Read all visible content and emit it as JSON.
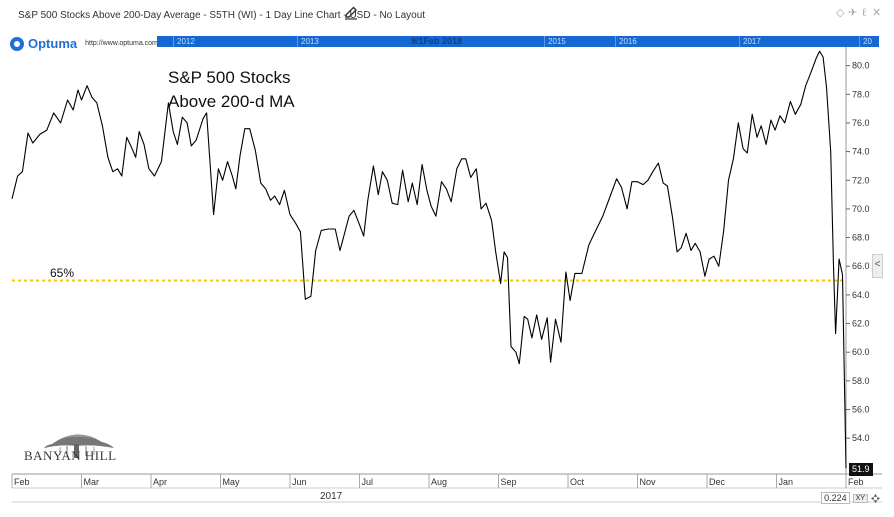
{
  "window": {
    "title": "S&P 500 Stocks Above 200-Day Average - S5TH (WI) - 1 Day Line Chart - USD - No Layout",
    "controls": [
      "◇",
      "✈",
      "ℓ",
      "✕"
    ]
  },
  "logo": {
    "name": "Optuma",
    "url": "http://www.optuma.com"
  },
  "timeline": {
    "years": [
      "2012",
      "2013",
      "2015",
      "2016",
      "2017",
      "20"
    ],
    "current": "9/1Feb 2018"
  },
  "annotation": {
    "line1": "S&P 500 Stocks",
    "line2": "Above 200-d MA"
  },
  "brand": "BANYAN HILL",
  "bottom": {
    "year_label": "2017",
    "truncated_year": "20",
    "zoom": "0.224",
    "xy_label": "XY"
  },
  "side_tab": "<",
  "colors": {
    "line": "#000000",
    "threshold": "#f5c400",
    "timeline_bg": "#1567d3",
    "badge_bg": "#111111"
  },
  "chart_data": {
    "type": "line",
    "xlabel": "",
    "ylabel": "",
    "ylim": [
      51.5,
      81.3
    ],
    "y_ticks": [
      "54.0",
      "56.0",
      "58.0",
      "60.0",
      "62.0",
      "64.0",
      "66.0",
      "68.0",
      "70.0",
      "72.0",
      "74.0",
      "76.0",
      "78.0",
      "80.0"
    ],
    "x_ticks": [
      "Feb",
      "Mar",
      "Apr",
      "May",
      "Jun",
      "Jul",
      "Aug",
      "Sep",
      "Oct",
      "Nov",
      "Dec",
      "Jan",
      "Feb"
    ],
    "last_value": "51.9",
    "threshold": {
      "value": 65,
      "label": "65%"
    },
    "series": [
      {
        "values": [
          [
            0,
            70.7
          ],
          [
            0.08,
            72.3
          ],
          [
            0.15,
            72.6
          ],
          [
            0.23,
            75.3
          ],
          [
            0.3,
            74.6
          ],
          [
            0.4,
            75.2
          ],
          [
            0.5,
            75.5
          ],
          [
            0.6,
            76.7
          ],
          [
            0.7,
            76.0
          ],
          [
            0.8,
            77.6
          ],
          [
            0.88,
            76.9
          ],
          [
            0.95,
            78.3
          ],
          [
            1.0,
            77.6
          ],
          [
            1.08,
            78.6
          ],
          [
            1.15,
            77.8
          ],
          [
            1.22,
            77.4
          ],
          [
            1.3,
            75.8
          ],
          [
            1.38,
            73.6
          ],
          [
            1.45,
            72.6
          ],
          [
            1.52,
            72.8
          ],
          [
            1.58,
            72.3
          ],
          [
            1.65,
            75.0
          ],
          [
            1.72,
            74.3
          ],
          [
            1.78,
            73.6
          ],
          [
            1.83,
            75.4
          ],
          [
            1.9,
            74.5
          ],
          [
            1.97,
            72.8
          ],
          [
            2.05,
            72.3
          ],
          [
            2.15,
            73.3
          ],
          [
            2.25,
            77.4
          ],
          [
            2.32,
            75.4
          ],
          [
            2.38,
            74.5
          ],
          [
            2.45,
            76.4
          ],
          [
            2.52,
            76.0
          ],
          [
            2.58,
            74.4
          ],
          [
            2.65,
            74.8
          ],
          [
            2.75,
            76.3
          ],
          [
            2.8,
            76.7
          ],
          [
            2.9,
            69.6
          ],
          [
            2.97,
            72.8
          ],
          [
            3.03,
            72.0
          ],
          [
            3.1,
            73.3
          ],
          [
            3.17,
            72.3
          ],
          [
            3.22,
            71.4
          ],
          [
            3.28,
            73.7
          ],
          [
            3.35,
            75.6
          ],
          [
            3.42,
            75.6
          ],
          [
            3.5,
            74.1
          ],
          [
            3.58,
            71.8
          ],
          [
            3.65,
            71.4
          ],
          [
            3.72,
            70.6
          ],
          [
            3.78,
            70.9
          ],
          [
            3.85,
            70.3
          ],
          [
            3.92,
            71.3
          ],
          [
            4.0,
            69.6
          ],
          [
            4.08,
            69.0
          ],
          [
            4.15,
            68.4
          ],
          [
            4.22,
            63.7
          ],
          [
            4.3,
            63.9
          ],
          [
            4.37,
            67.1
          ],
          [
            4.45,
            68.5
          ],
          [
            4.55,
            68.6
          ],
          [
            4.65,
            68.6
          ],
          [
            4.72,
            67.1
          ],
          [
            4.78,
            68.2
          ],
          [
            4.85,
            69.5
          ],
          [
            4.92,
            69.9
          ],
          [
            5.0,
            68.9
          ],
          [
            5.06,
            68.1
          ],
          [
            5.12,
            70.6
          ],
          [
            5.2,
            73.0
          ],
          [
            5.27,
            71.0
          ],
          [
            5.33,
            72.6
          ],
          [
            5.4,
            72.0
          ],
          [
            5.47,
            70.4
          ],
          [
            5.55,
            70.3
          ],
          [
            5.62,
            72.7
          ],
          [
            5.7,
            70.5
          ],
          [
            5.76,
            71.8
          ],
          [
            5.83,
            70.3
          ],
          [
            5.9,
            73.1
          ],
          [
            5.97,
            71.3
          ],
          [
            6.03,
            70.2
          ],
          [
            6.1,
            69.5
          ],
          [
            6.18,
            71.9
          ],
          [
            6.25,
            71.4
          ],
          [
            6.32,
            70.5
          ],
          [
            6.4,
            72.8
          ],
          [
            6.47,
            73.5
          ],
          [
            6.53,
            73.5
          ],
          [
            6.6,
            72.2
          ],
          [
            6.68,
            72.8
          ],
          [
            6.75,
            70.0
          ],
          [
            6.82,
            70.4
          ],
          [
            6.9,
            69.2
          ],
          [
            6.96,
            67.0
          ],
          [
            7.03,
            64.8
          ],
          [
            7.08,
            67.0
          ],
          [
            7.13,
            66.6
          ],
          [
            7.18,
            60.4
          ],
          [
            7.25,
            60.0
          ],
          [
            7.3,
            59.2
          ],
          [
            7.37,
            62.5
          ],
          [
            7.42,
            62.3
          ],
          [
            7.48,
            61.0
          ],
          [
            7.55,
            62.6
          ],
          [
            7.62,
            60.9
          ],
          [
            7.7,
            62.4
          ],
          [
            7.75,
            59.3
          ],
          [
            7.82,
            62.3
          ],
          [
            7.9,
            60.7
          ],
          [
            7.97,
            65.6
          ],
          [
            8.03,
            63.6
          ],
          [
            8.1,
            65.5
          ],
          [
            8.2,
            65.5
          ],
          [
            8.3,
            67.5
          ],
          [
            8.4,
            68.5
          ],
          [
            8.5,
            69.5
          ],
          [
            8.6,
            70.8
          ],
          [
            8.7,
            72.1
          ],
          [
            8.77,
            71.5
          ],
          [
            8.85,
            70.0
          ],
          [
            8.92,
            71.9
          ],
          [
            9.0,
            71.9
          ],
          [
            9.08,
            71.7
          ],
          [
            9.15,
            72.0
          ],
          [
            9.22,
            72.6
          ],
          [
            9.3,
            73.2
          ],
          [
            9.37,
            71.8
          ],
          [
            9.43,
            71.6
          ],
          [
            9.5,
            69.5
          ],
          [
            9.57,
            67.0
          ],
          [
            9.63,
            67.3
          ],
          [
            9.7,
            68.3
          ],
          [
            9.77,
            67.1
          ],
          [
            9.83,
            67.6
          ],
          [
            9.9,
            67.0
          ],
          [
            9.97,
            65.3
          ],
          [
            10.03,
            66.5
          ],
          [
            10.1,
            66.7
          ],
          [
            10.17,
            66.0
          ],
          [
            10.24,
            68.5
          ],
          [
            10.31,
            72.0
          ],
          [
            10.38,
            73.5
          ],
          [
            10.45,
            76.0
          ],
          [
            10.52,
            74.2
          ],
          [
            10.58,
            73.9
          ],
          [
            10.65,
            76.6
          ],
          [
            10.72,
            75.0
          ],
          [
            10.78,
            75.8
          ],
          [
            10.85,
            74.5
          ],
          [
            10.92,
            76.2
          ],
          [
            10.98,
            75.5
          ],
          [
            11.05,
            76.5
          ],
          [
            11.12,
            76.0
          ],
          [
            11.2,
            77.5
          ],
          [
            11.27,
            76.6
          ],
          [
            11.35,
            77.3
          ],
          [
            11.42,
            78.6
          ],
          [
            11.5,
            79.6
          ],
          [
            11.57,
            80.5
          ],
          [
            11.62,
            81.0
          ],
          [
            11.67,
            80.6
          ],
          [
            11.72,
            78.5
          ],
          [
            11.78,
            74.0
          ],
          [
            11.82,
            66.0
          ],
          [
            11.85,
            61.3
          ],
          [
            11.9,
            66.5
          ],
          [
            11.95,
            65.4
          ],
          [
            12.0,
            51.9
          ]
        ]
      }
    ]
  }
}
